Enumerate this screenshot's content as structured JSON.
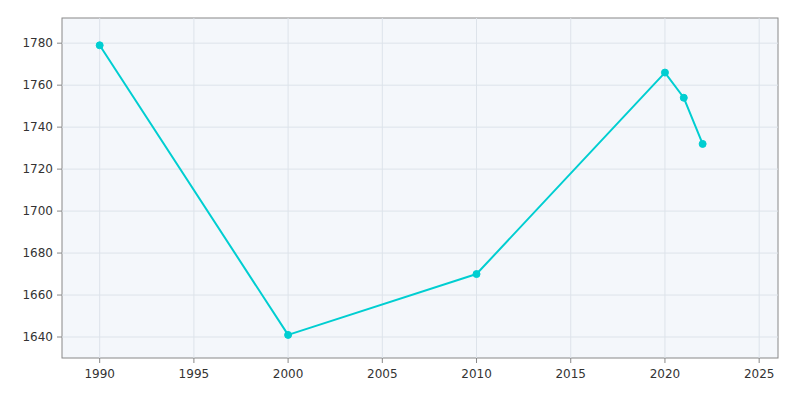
{
  "chart_data": {
    "type": "line",
    "x": [
      1990,
      2000,
      2010,
      2020,
      2021,
      2022
    ],
    "values": [
      1779,
      1641,
      1670,
      1766,
      1754,
      1732
    ],
    "color": "#00CED1",
    "marker": "circle",
    "xlim": [
      1988,
      2026
    ],
    "ylim": [
      1630,
      1792
    ],
    "xticks": [
      1990,
      1995,
      2000,
      2005,
      2010,
      2015,
      2020,
      2025
    ],
    "yticks": [
      1640,
      1660,
      1680,
      1700,
      1720,
      1740,
      1760,
      1780
    ],
    "grid": true
  }
}
